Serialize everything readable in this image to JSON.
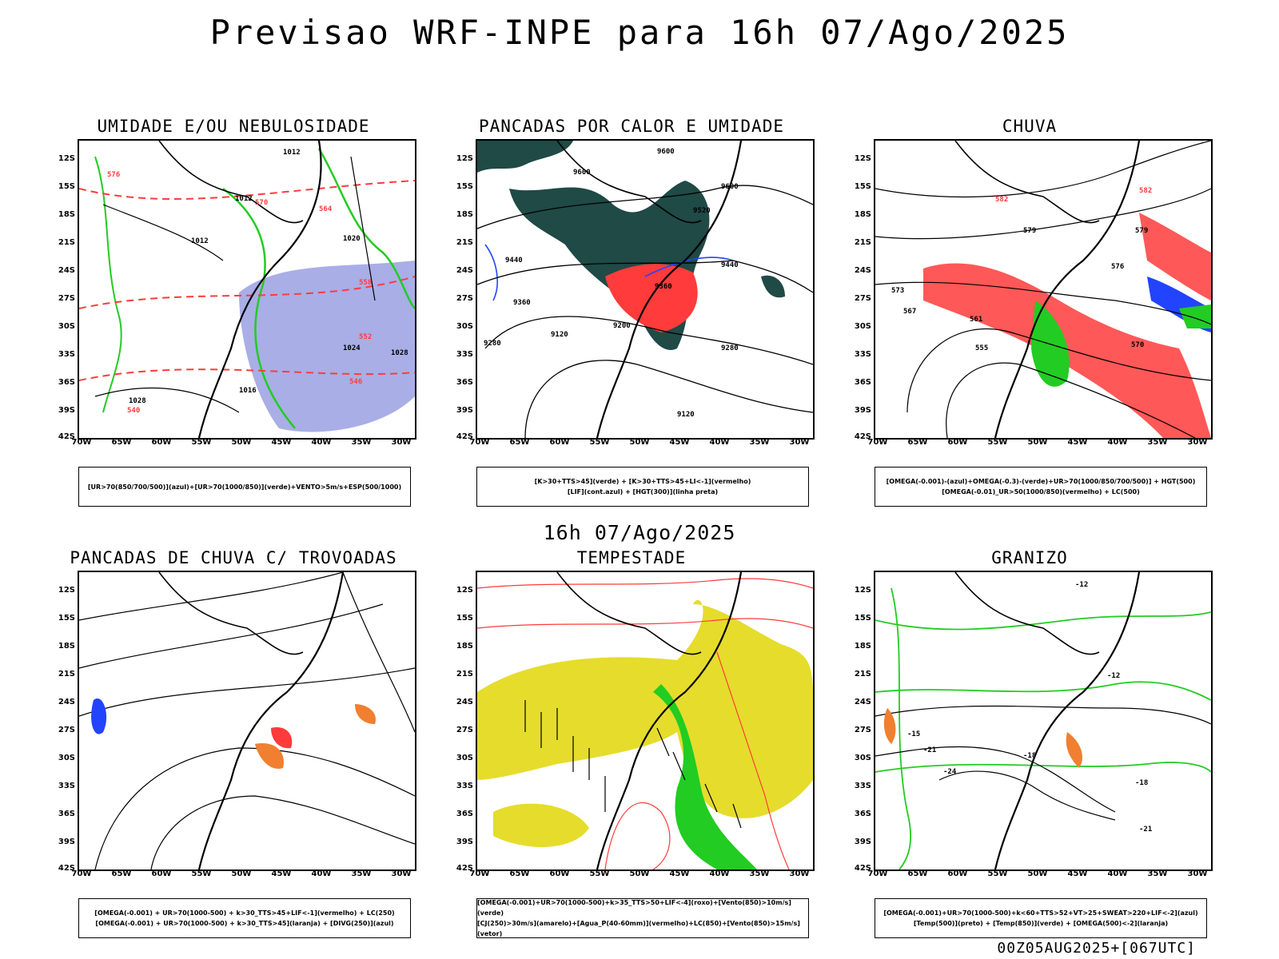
{
  "title": "Previsao WRF-INPE  para 16h 07/Ago/2025",
  "middle_time": "16h 07/Ago/2025",
  "footer": "00Z05AUG2025+[067UTC]",
  "lat_labels": [
    "12S",
    "15S",
    "18S",
    "21S",
    "24S",
    "27S",
    "30S",
    "33S",
    "36S",
    "39S",
    "42S"
  ],
  "lon_labels": [
    "70W",
    "65W",
    "60W",
    "55W",
    "50W",
    "45W",
    "40W",
    "35W",
    "30W"
  ],
  "colors": {
    "blue_shade": "#a9aee6",
    "green": "#22cc22",
    "red": "#ff3b3b",
    "dark_teal": "#1f4a46",
    "blue": "#2244ff",
    "yellow": "#e6dc2c",
    "orange": "#f08030"
  },
  "panels": [
    {
      "title": "UMIDADE E/OU NEBULOSIDADE",
      "legend": [
        "[UR>70(850/700/500)](azul)+[UR>70(1000/850)](verde)+VENTO>5m/s+ESP(500/1000)"
      ],
      "labels": [
        "1012",
        "1012",
        "1012",
        "1020",
        "1024",
        "1028",
        "1028",
        "1016",
        "576",
        "570",
        "564",
        "558",
        "552",
        "546",
        "540"
      ]
    },
    {
      "title": "PANCADAS POR CALOR E UMIDADE",
      "legend": [
        "[K>30+TTS>45](verde) + [K>30+TTS>45+LI<-1](vermelho)",
        "[LIF](cont.azul) + [HGT(300)](linha preta)"
      ],
      "labels": [
        "9600",
        "9600",
        "9600",
        "9520",
        "9520",
        "9440",
        "9440",
        "9360",
        "9360",
        "9280",
        "9280",
        "9200",
        "9120",
        "9120"
      ]
    },
    {
      "title": "CHUVA",
      "legend": [
        "[OMEGA(-0.001)-(azul)+OMEGA(-0.3)-(verde)+UR>70(1000/850/700/500)] + HGT(500)",
        "[OMEGA(-0.01)_UR>50(1000/850)(vermelho) + LC(500)"
      ],
      "labels": [
        "582",
        "582",
        "579",
        "579",
        "576",
        "573",
        "570",
        "567",
        "561",
        "555"
      ]
    },
    {
      "title": "PANCADAS DE CHUVA C/ TROVOADAS",
      "legend": [
        "[OMEGA(-0.001) + UR>70(1000-500) + k>30_TTS>45+LIF<-1](vermelho) + LC(250)",
        "[OMEGA(-0.001) + UR>70(1000-500) + k>30_TTS>45](laranja) + [DIVG(250)](azul)"
      ],
      "labels": []
    },
    {
      "title": "TEMPESTADE",
      "legend": [
        "[OMEGA(-0.001)+UR>70(1000-500)+k>35_TTS>50+LIF<-4](roxo)+[Vento(850)>10m/s](verde)",
        "[CJ(250)>30m/s](amarelo)+[Agua_P(40-60mm)](vermelho)+LC(850)+[Vento(850)>15m/s](vetor)"
      ],
      "labels": []
    },
    {
      "title": "GRANIZO",
      "legend": [
        "[OMEGA(-0.001)+UR>70(1000-500)+k<60+TTS>52+VT>25+SWEAT>220+LIF<-2](azul)",
        "[Temp(500)](preto) + [Temp(850)](verde) + [OMEGA(500)<-2](laranja)"
      ],
      "labels": [
        "-12",
        "-15",
        "-18",
        "-21",
        "-24",
        "-18",
        "-21",
        "-12"
      ]
    }
  ]
}
